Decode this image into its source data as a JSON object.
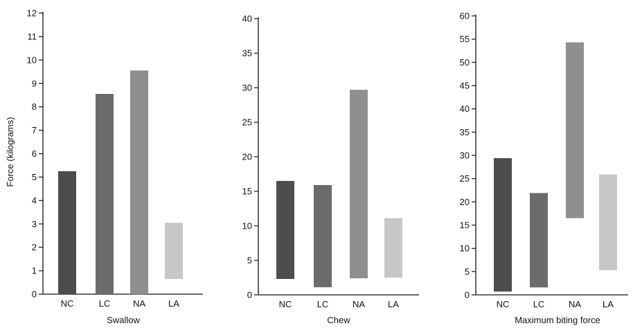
{
  "ylabel": "Force (kilograms)",
  "colors": {
    "NC": "#4d4d4d",
    "LC": "#6b6b6b",
    "NA": "#8f8f8f",
    "LA": "#c7c7c7",
    "axis": "#111111"
  },
  "chart_data": [
    {
      "type": "bar",
      "title": "Swallow",
      "categories": [
        "NC",
        "LC",
        "NA",
        "LA"
      ],
      "ranges": [
        [
          0,
          5.25
        ],
        [
          0,
          8.55
        ],
        [
          0,
          9.55
        ],
        [
          0.65,
          3.05
        ]
      ],
      "ylim": [
        0,
        12
      ],
      "yticks": [
        0,
        1,
        2,
        3,
        4,
        5,
        6,
        7,
        8,
        9,
        10,
        11,
        12
      ]
    },
    {
      "type": "bar",
      "title": "Chew",
      "categories": [
        "NC",
        "LC",
        "NA",
        "LA"
      ],
      "ranges": [
        [
          2.3,
          16.5
        ],
        [
          1.1,
          15.9
        ],
        [
          2.4,
          29.7
        ],
        [
          2.5,
          11.1
        ]
      ],
      "ylim": [
        0,
        40
      ],
      "yticks": [
        0,
        5,
        10,
        15,
        20,
        25,
        30,
        35,
        40
      ]
    },
    {
      "type": "bar",
      "title": "Maximum biting force",
      "categories": [
        "NC",
        "LC",
        "NA",
        "LA"
      ],
      "ranges": [
        [
          0.7,
          29.4
        ],
        [
          1.6,
          21.9
        ],
        [
          16.5,
          54.3
        ],
        [
          5.3,
          25.9
        ]
      ],
      "ylim": [
        0,
        60
      ],
      "yticks": [
        0,
        5,
        10,
        15,
        20,
        25,
        30,
        35,
        40,
        45,
        50,
        55,
        60
      ]
    }
  ]
}
